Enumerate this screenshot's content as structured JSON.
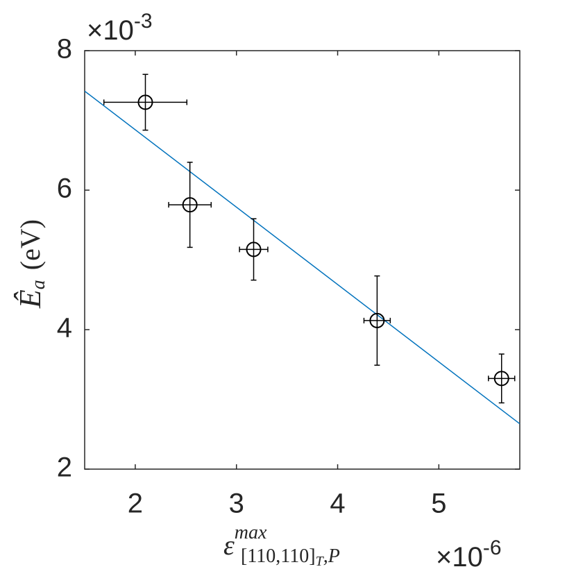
{
  "chart_data": {
    "type": "scatter",
    "x": [
      2.1,
      2.54,
      3.17,
      4.39,
      5.62
    ],
    "xerr": [
      0.41,
      0.21,
      0.14,
      0.13,
      0.13
    ],
    "y": [
      7.26,
      5.79,
      5.15,
      4.13,
      3.3
    ],
    "yerr": [
      0.4,
      0.61,
      0.44,
      0.64,
      0.35
    ],
    "color": "#000000",
    "fit": {
      "x": [
        1.5,
        5.8
      ],
      "y": [
        7.42,
        2.65
      ],
      "color": "#0072bd"
    },
    "xlim": [
      1.5,
      5.8
    ],
    "ylim": [
      2,
      8
    ],
    "xticks": [
      2,
      3,
      4,
      5
    ],
    "yticks": [
      2,
      4,
      6,
      8
    ],
    "x_multiplier": {
      "base": "×10",
      "exponent": "-6"
    },
    "y_multiplier": {
      "base": "×10",
      "exponent": "-3"
    },
    "ylabel": {
      "symbol": "Ê",
      "sub": "a",
      "unit": "(eV)"
    },
    "xlabel": {
      "symbol": "ε",
      "sup": "max",
      "sub": "[110,110]",
      "subsub": "T",
      "subtail": ",P"
    }
  }
}
